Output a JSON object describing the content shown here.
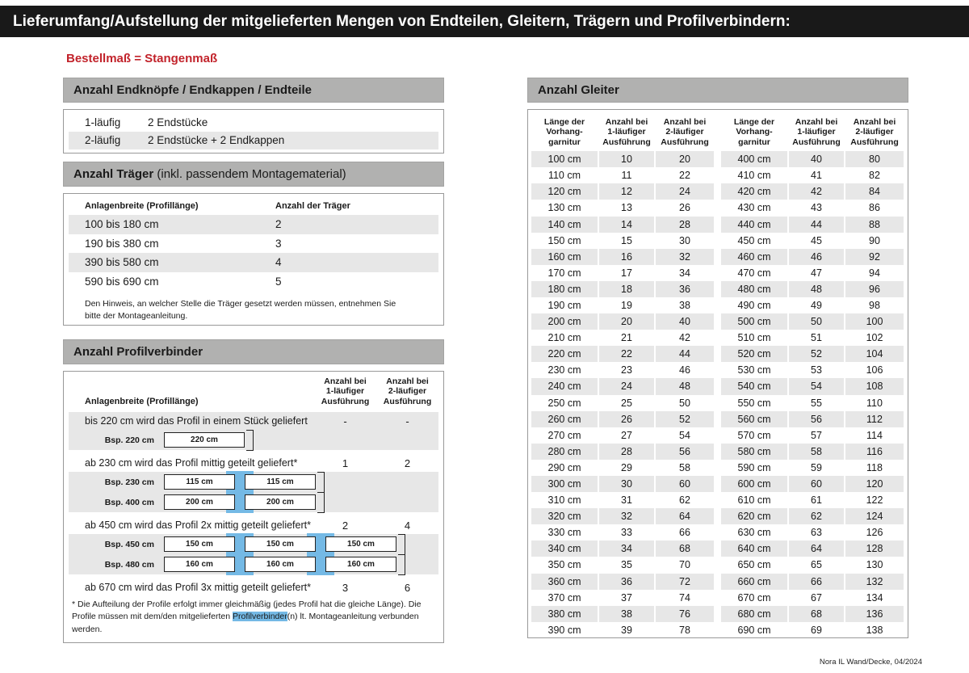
{
  "page": {
    "title": "Lieferumfang/Aufstellung der mitgelieferten Mengen von Endteilen, Gleitern, Trägern und Profilverbindern:",
    "subtitle": "Bestellmaß = Stangenmaß",
    "footer": "Nora IL Wand/Decke, 04/2024"
  },
  "endteile": {
    "heading": "Anzahl Endknöpfe / Endkappen / Endteile",
    "rows": [
      [
        "1-läufig",
        "2 Endstücke"
      ],
      [
        "2-läufig",
        "2 Endstücke + 2 Endkappen"
      ]
    ]
  },
  "traeger": {
    "heading_bold": "Anzahl Träger",
    "heading_rest": " (inkl. passendem Montagematerial)",
    "col1": "Anlagenbreite (Profillänge)",
    "col2": "Anzahl der Träger",
    "rows": [
      [
        "100 bis 180 cm",
        "2"
      ],
      [
        "190 bis 380 cm",
        "3"
      ],
      [
        "390 bis 580 cm",
        "4"
      ],
      [
        "590 bis 690 cm",
        "5"
      ]
    ],
    "note": "Den Hinweis, an welcher Stelle die Träger gesetzt werden müssen, entnehmen Sie bitte der Montageanleitung."
  },
  "profilverbinder": {
    "heading": "Anzahl Profilverbinder",
    "col1": "Anlagenbreite (Profillänge)",
    "col2": "Anzahl bei\n1-läufiger\nAusführung",
    "col3": "Anzahl bei\n2-läufiger\nAusführung",
    "sections": [
      {
        "text": "bis 220 cm wird das Profil in einem Stück geliefert",
        "v1": "-",
        "v2": "-",
        "examples": [
          {
            "label": "Bsp. 220 cm",
            "segments": [
              "220 cm"
            ]
          }
        ]
      },
      {
        "text": "ab 230 cm wird das Profil mittig geteilt geliefert*",
        "v1": "1",
        "v2": "2",
        "examples": [
          {
            "label": "Bsp. 230 cm",
            "segments": [
              "115 cm",
              "115 cm"
            ]
          },
          {
            "label": "Bsp. 400 cm",
            "segments": [
              "200 cm",
              "200 cm"
            ]
          }
        ]
      },
      {
        "text": "ab 450 cm wird das Profil 2x mittig geteilt geliefert*",
        "v1": "2",
        "v2": "4",
        "examples": [
          {
            "label": "Bsp. 450 cm",
            "segments": [
              "150 cm",
              "150 cm",
              "150 cm"
            ]
          },
          {
            "label": "Bsp. 480 cm",
            "segments": [
              "160 cm",
              "160 cm",
              "160 cm"
            ]
          }
        ]
      },
      {
        "text": "ab 670 cm wird das Profil 3x mittig geteilt geliefert*",
        "v1": "3",
        "v2": "6",
        "examples": []
      }
    ],
    "footnote_pre": "* Die Aufteilung der Profile erfolgt immer gleichmäßig (jedes Profil hat die gleiche Länge). Die Profile müssen mit dem/den mitgelieferten ",
    "footnote_highlight": "Profilverbinder",
    "footnote_post": "(n) lt. Montageanleitung verbunden werden."
  },
  "gleiter": {
    "heading": "Anzahl Gleiter",
    "col_laenge": "Länge der\nVorhang-\ngarnitur",
    "col_1l": "Anzahl bei\n1-läufiger\nAusführung",
    "col_2l": "Anzahl bei\n2-läufiger\nAusführung",
    "left_rows": [
      [
        "100 cm",
        "10",
        "20"
      ],
      [
        "110 cm",
        "11",
        "22"
      ],
      [
        "120 cm",
        "12",
        "24"
      ],
      [
        "130 cm",
        "13",
        "26"
      ],
      [
        "140 cm",
        "14",
        "28"
      ],
      [
        "150 cm",
        "15",
        "30"
      ],
      [
        "160 cm",
        "16",
        "32"
      ],
      [
        "170 cm",
        "17",
        "34"
      ],
      [
        "180 cm",
        "18",
        "36"
      ],
      [
        "190 cm",
        "19",
        "38"
      ],
      [
        "200 cm",
        "20",
        "40"
      ],
      [
        "210 cm",
        "21",
        "42"
      ],
      [
        "220 cm",
        "22",
        "44"
      ],
      [
        "230 cm",
        "23",
        "46"
      ],
      [
        "240 cm",
        "24",
        "48"
      ],
      [
        "250 cm",
        "25",
        "50"
      ],
      [
        "260 cm",
        "26",
        "52"
      ],
      [
        "270 cm",
        "27",
        "54"
      ],
      [
        "280 cm",
        "28",
        "56"
      ],
      [
        "290 cm",
        "29",
        "58"
      ],
      [
        "300 cm",
        "30",
        "60"
      ],
      [
        "310 cm",
        "31",
        "62"
      ],
      [
        "320 cm",
        "32",
        "64"
      ],
      [
        "330 cm",
        "33",
        "66"
      ],
      [
        "340 cm",
        "34",
        "68"
      ],
      [
        "350 cm",
        "35",
        "70"
      ],
      [
        "360 cm",
        "36",
        "72"
      ],
      [
        "370 cm",
        "37",
        "74"
      ],
      [
        "380 cm",
        "38",
        "76"
      ],
      [
        "390 cm",
        "39",
        "78"
      ]
    ],
    "right_rows": [
      [
        "400 cm",
        "40",
        "80"
      ],
      [
        "410 cm",
        "41",
        "82"
      ],
      [
        "420 cm",
        "42",
        "84"
      ],
      [
        "430 cm",
        "43",
        "86"
      ],
      [
        "440 cm",
        "44",
        "88"
      ],
      [
        "450 cm",
        "45",
        "90"
      ],
      [
        "460 cm",
        "46",
        "92"
      ],
      [
        "470 cm",
        "47",
        "94"
      ],
      [
        "480 cm",
        "48",
        "96"
      ],
      [
        "490 cm",
        "49",
        "98"
      ],
      [
        "500 cm",
        "50",
        "100"
      ],
      [
        "510 cm",
        "51",
        "102"
      ],
      [
        "520 cm",
        "52",
        "104"
      ],
      [
        "530 cm",
        "53",
        "106"
      ],
      [
        "540 cm",
        "54",
        "108"
      ],
      [
        "550 cm",
        "55",
        "110"
      ],
      [
        "560 cm",
        "56",
        "112"
      ],
      [
        "570 cm",
        "57",
        "114"
      ],
      [
        "580 cm",
        "58",
        "116"
      ],
      [
        "590 cm",
        "59",
        "118"
      ],
      [
        "600 cm",
        "60",
        "120"
      ],
      [
        "610 cm",
        "61",
        "122"
      ],
      [
        "620 cm",
        "62",
        "124"
      ],
      [
        "630 cm",
        "63",
        "126"
      ],
      [
        "640 cm",
        "64",
        "128"
      ],
      [
        "650 cm",
        "65",
        "130"
      ],
      [
        "660 cm",
        "66",
        "132"
      ],
      [
        "670 cm",
        "67",
        "134"
      ],
      [
        "680 cm",
        "68",
        "136"
      ],
      [
        "690 cm",
        "69",
        "138"
      ]
    ]
  }
}
